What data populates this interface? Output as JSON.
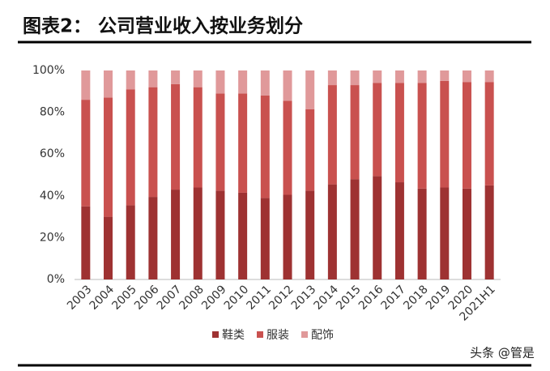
{
  "chart_data": {
    "type": "stacked_bar",
    "title": "图表2： 公司营业收入按业务划分",
    "categories": [
      "2003",
      "2004",
      "2005",
      "2006",
      "2007",
      "2008",
      "2009",
      "2010",
      "2011",
      "2012",
      "2013",
      "2014",
      "2015",
      "2016",
      "2017",
      "2018",
      "2019",
      "2020",
      "2021H1"
    ],
    "series": [
      {
        "name": "鞋类",
        "color": "#9e3232",
        "values": [
          35,
          30,
          35.5,
          39.5,
          43,
          44,
          42.5,
          41.5,
          39,
          40.5,
          42.5,
          45.5,
          48,
          49.5,
          46.5,
          43.5,
          44,
          43.5,
          45
        ]
      },
      {
        "name": "服装",
        "color": "#c9514f",
        "values": [
          51,
          57,
          55.5,
          52.5,
          50.5,
          48,
          46.5,
          47.5,
          49,
          45,
          39,
          47.5,
          45,
          44.5,
          47.5,
          50.5,
          51,
          51,
          49.5
        ]
      },
      {
        "name": "配饰",
        "color": "#e0999a",
        "values": [
          14,
          13,
          9,
          8,
          6.5,
          8,
          11,
          11,
          12,
          14.5,
          18.5,
          7,
          7,
          6,
          6,
          6,
          5,
          5.5,
          5.5
        ]
      }
    ],
    "ylim": [
      0,
      100
    ],
    "yticks": [
      {
        "value": 0,
        "label": "0%"
      },
      {
        "value": 20,
        "label": "20%"
      },
      {
        "value": 40,
        "label": "40%"
      },
      {
        "value": 60,
        "label": "60%"
      },
      {
        "value": 80,
        "label": "80%"
      },
      {
        "value": 100,
        "label": "100%"
      }
    ],
    "watermark": "头条 @管是"
  }
}
